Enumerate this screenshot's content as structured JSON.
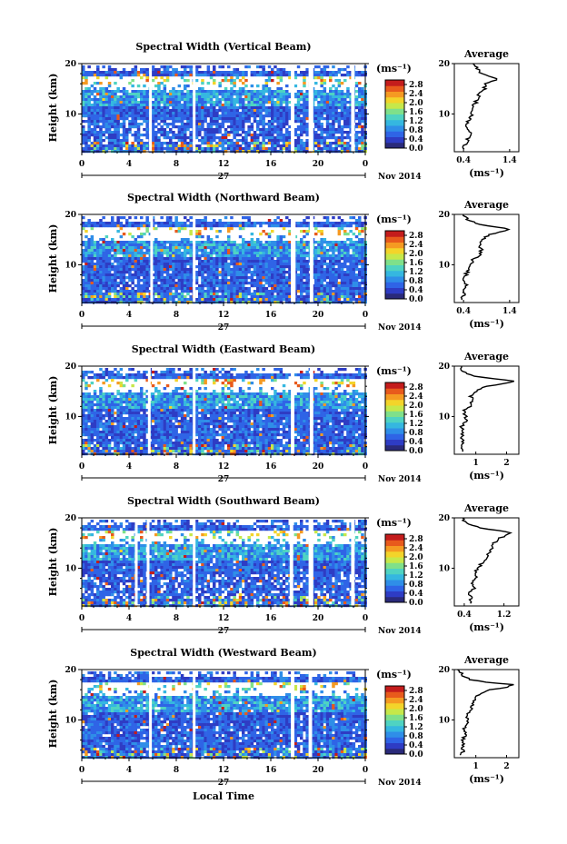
{
  "colormap": [
    "#2a2a7a",
    "#2e3cc4",
    "#2f64e6",
    "#2f8ee8",
    "#35b7e0",
    "#4fd3c2",
    "#7fe08a",
    "#c6e84a",
    "#f3d42a",
    "#f59a22",
    "#e85a1c",
    "#c41c1c"
  ],
  "common": {
    "height_label": "Height (km)",
    "y_ticks": [
      "20",
      "10"
    ],
    "x_ticks": [
      "0",
      "4",
      "8",
      "12",
      "16",
      "20",
      "0"
    ],
    "date_day": "27",
    "date_month": "Nov 2014",
    "unit": "(ms⁻¹)",
    "colorbar_ticks": [
      "2.8",
      "2.4",
      "2.0",
      "1.6",
      "1.2",
      "0.8",
      "0.4",
      "0.0"
    ],
    "average_title": "Average",
    "average_xlabel": "(ms⁻¹)",
    "xlabel": "Local Time"
  },
  "chart_data": [
    {
      "type": "heatmap",
      "title": "Spectral Width (Vertical Beam)",
      "ylabel": "Height (km)",
      "x_range_hours": [
        0,
        24
      ],
      "y_range_km": [
        2.5,
        20
      ],
      "colorbar_range": [
        0.0,
        3.0
      ],
      "gap_hours": [
        [
          5.7,
          5.9
        ],
        [
          9.4,
          9.6
        ],
        [
          17.7,
          18.0
        ],
        [
          19.2,
          19.6
        ],
        [
          22.8,
          23.1
        ]
      ],
      "profile": {
        "type": "line",
        "title": "Average",
        "xticks": [
          "0.4",
          "1.4"
        ],
        "xlim": [
          0.2,
          1.6
        ],
        "height_km": [
          3,
          4,
          5,
          6,
          7,
          8,
          9,
          10,
          11,
          12,
          13,
          14,
          15,
          16,
          16.5,
          17,
          17.5,
          18,
          19,
          20
        ],
        "width_ms": [
          0.4,
          0.45,
          0.5,
          0.55,
          0.5,
          0.45,
          0.55,
          0.6,
          0.55,
          0.65,
          0.7,
          0.75,
          0.85,
          0.9,
          1.05,
          1.15,
          0.95,
          0.8,
          0.7,
          0.6
        ]
      }
    },
    {
      "type": "heatmap",
      "title": "Spectral Width (Northward Beam)",
      "ylabel": "Height (km)",
      "x_range_hours": [
        0,
        24
      ],
      "y_range_km": [
        2.5,
        20
      ],
      "colorbar_range": [
        0.0,
        3.0
      ],
      "gap_hours": [
        [
          5.8,
          6.0
        ],
        [
          9.4,
          9.6
        ],
        [
          17.7,
          18.1
        ],
        [
          19.3,
          19.6
        ]
      ],
      "profile": {
        "type": "line",
        "title": "Average",
        "xticks": [
          "0.4",
          "1.4"
        ],
        "xlim": [
          0.2,
          1.6
        ],
        "height_km": [
          3,
          4,
          5,
          6,
          7,
          8,
          9,
          10,
          11,
          12,
          13,
          14,
          15,
          16,
          16.5,
          17,
          17.5,
          18,
          19,
          20
        ],
        "width_ms": [
          0.35,
          0.4,
          0.4,
          0.45,
          0.4,
          0.45,
          0.5,
          0.55,
          0.6,
          0.75,
          0.8,
          0.75,
          0.8,
          0.95,
          1.2,
          1.4,
          1.15,
          0.75,
          0.5,
          0.35
        ]
      }
    },
    {
      "type": "heatmap",
      "title": "Spectral Width (Eastward Beam)",
      "ylabel": "Height (km)",
      "x_range_hours": [
        0,
        24
      ],
      "y_range_km": [
        2.5,
        20
      ],
      "colorbar_range": [
        0.0,
        3.0
      ],
      "gap_hours": [
        [
          5.6,
          5.8
        ],
        [
          9.4,
          9.6
        ],
        [
          17.7,
          18.0
        ],
        [
          19.3,
          19.6
        ]
      ],
      "profile": {
        "type": "line",
        "title": "Average",
        "xticks": [
          "1",
          "2"
        ],
        "xlim": [
          0.3,
          2.4
        ],
        "height_km": [
          3,
          4,
          5,
          6,
          7,
          8,
          9,
          10,
          11,
          12,
          13,
          14,
          15,
          16,
          16.5,
          17,
          17.5,
          18,
          19,
          20
        ],
        "width_ms": [
          0.6,
          0.55,
          0.6,
          0.55,
          0.6,
          0.55,
          0.65,
          0.7,
          0.6,
          0.8,
          0.9,
          0.85,
          1.0,
          1.3,
          1.9,
          2.3,
          1.6,
          0.9,
          0.6,
          0.5
        ]
      }
    },
    {
      "type": "heatmap",
      "title": "Spectral Width (Southward Beam)",
      "ylabel": "Height (km)",
      "x_range_hours": [
        0,
        24
      ],
      "y_range_km": [
        2.5,
        20
      ],
      "colorbar_range": [
        0.0,
        3.0
      ],
      "gap_hours": [
        [
          4.5,
          4.7
        ],
        [
          5.5,
          5.7
        ],
        [
          9.4,
          9.6
        ],
        [
          17.6,
          17.9
        ],
        [
          19.2,
          19.6
        ],
        [
          22.8,
          23.1
        ]
      ],
      "profile": {
        "type": "line",
        "title": "Average",
        "xticks": [
          "0.4",
          "1.2"
        ],
        "xlim": [
          0.2,
          1.5
        ],
        "height_km": [
          3,
          4,
          5,
          6,
          7,
          8,
          9,
          10,
          11,
          12,
          13,
          14,
          15,
          16,
          16.5,
          17,
          17.5,
          18,
          19,
          20
        ],
        "width_ms": [
          0.5,
          0.55,
          0.5,
          0.6,
          0.55,
          0.65,
          0.6,
          0.7,
          0.75,
          0.85,
          0.9,
          0.95,
          1.0,
          1.1,
          1.25,
          1.35,
          1.1,
          0.7,
          0.45,
          0.35
        ]
      }
    },
    {
      "type": "heatmap",
      "title": "Spectral Width (Westward Beam)",
      "ylabel": "Height (km)",
      "x_range_hours": [
        0,
        24
      ],
      "y_range_km": [
        2.5,
        20
      ],
      "colorbar_range": [
        0.0,
        3.0
      ],
      "gap_hours": [
        [
          5.7,
          5.9
        ],
        [
          9.4,
          9.6
        ],
        [
          17.7,
          18.0
        ],
        [
          19.2,
          19.5
        ]
      ],
      "profile": {
        "type": "line",
        "title": "Average",
        "xticks": [
          "1",
          "2"
        ],
        "xlim": [
          0.3,
          2.4
        ],
        "height_km": [
          3,
          4,
          5,
          6,
          7,
          8,
          9,
          10,
          11,
          12,
          13,
          14,
          15,
          16,
          16.5,
          17,
          17.5,
          18,
          19,
          20
        ],
        "width_ms": [
          0.55,
          0.6,
          0.55,
          0.6,
          0.65,
          0.6,
          0.7,
          0.75,
          0.7,
          0.85,
          0.9,
          0.95,
          1.1,
          1.5,
          2.0,
          2.2,
          1.4,
          0.8,
          0.55,
          0.45
        ]
      }
    }
  ]
}
